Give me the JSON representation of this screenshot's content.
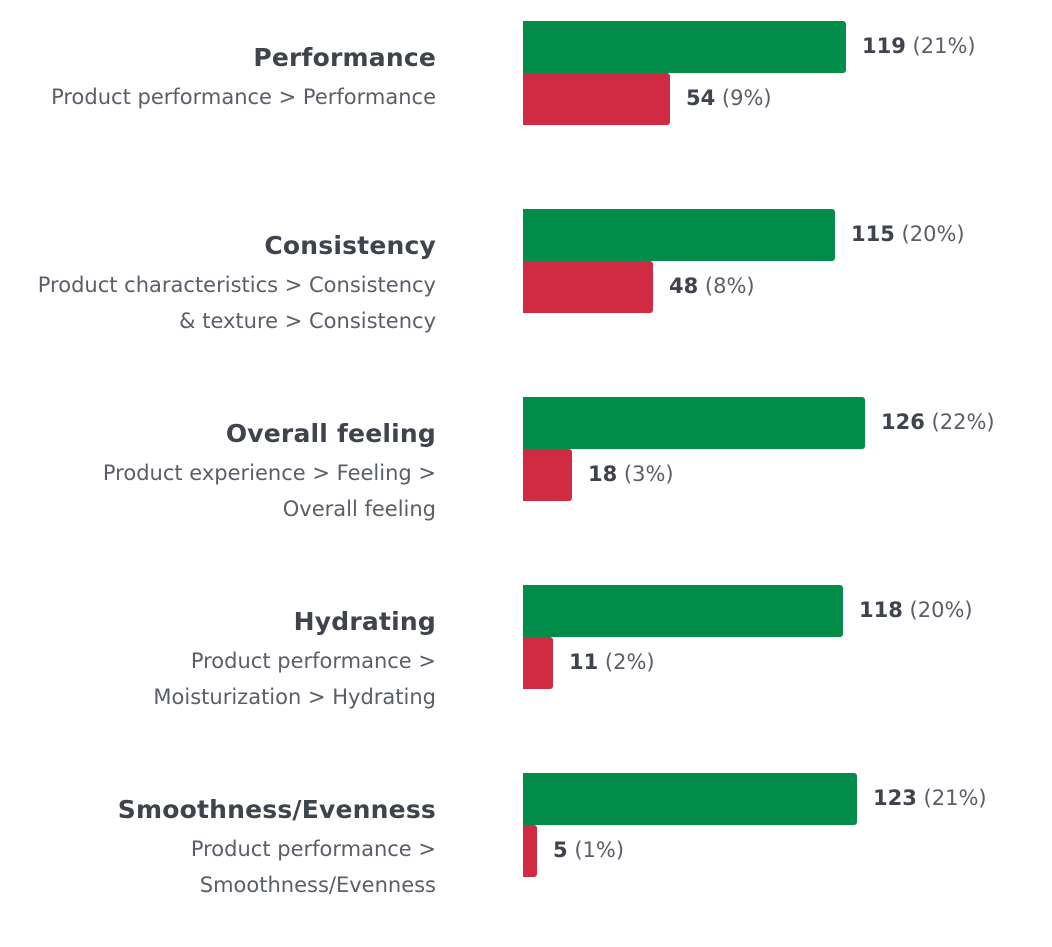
{
  "chart_data": {
    "type": "bar",
    "orientation": "horizontal",
    "title": "",
    "xlabel": "",
    "ylabel": "",
    "grid": false,
    "legend": "none",
    "max_value": 126,
    "colors": {
      "positive": "#028e4a",
      "negative": "#d12a43",
      "title_text": "#3f434d",
      "path_text": "#5a5e68"
    },
    "categories": [
      {
        "title": "Performance",
        "path_lines": [
          "Product performance > Performance"
        ],
        "positive": {
          "value": 119,
          "pct": "(21%)"
        },
        "negative": {
          "value": 54,
          "pct": "(9%)"
        }
      },
      {
        "title": "Consistency",
        "path_lines": [
          "Product characteristics > Consistency",
          "& texture > Consistency"
        ],
        "positive": {
          "value": 115,
          "pct": "(20%)"
        },
        "negative": {
          "value": 48,
          "pct": "(8%)"
        }
      },
      {
        "title": "Overall feeling",
        "path_lines": [
          "Product experience > Feeling >",
          "Overall feeling"
        ],
        "positive": {
          "value": 126,
          "pct": "(22%)"
        },
        "negative": {
          "value": 18,
          "pct": "(3%)"
        }
      },
      {
        "title": "Hydrating",
        "path_lines": [
          "Product performance >",
          "Moisturization > Hydrating"
        ],
        "positive": {
          "value": 118,
          "pct": "(20%)"
        },
        "negative": {
          "value": 11,
          "pct": "(2%)"
        }
      },
      {
        "title": "Smoothness/Evenness",
        "path_lines": [
          "Product performance >",
          "Smoothness/Evenness"
        ],
        "positive": {
          "value": 123,
          "pct": "(21%)"
        },
        "negative": {
          "value": 5,
          "pct": "(1%)"
        }
      }
    ]
  }
}
